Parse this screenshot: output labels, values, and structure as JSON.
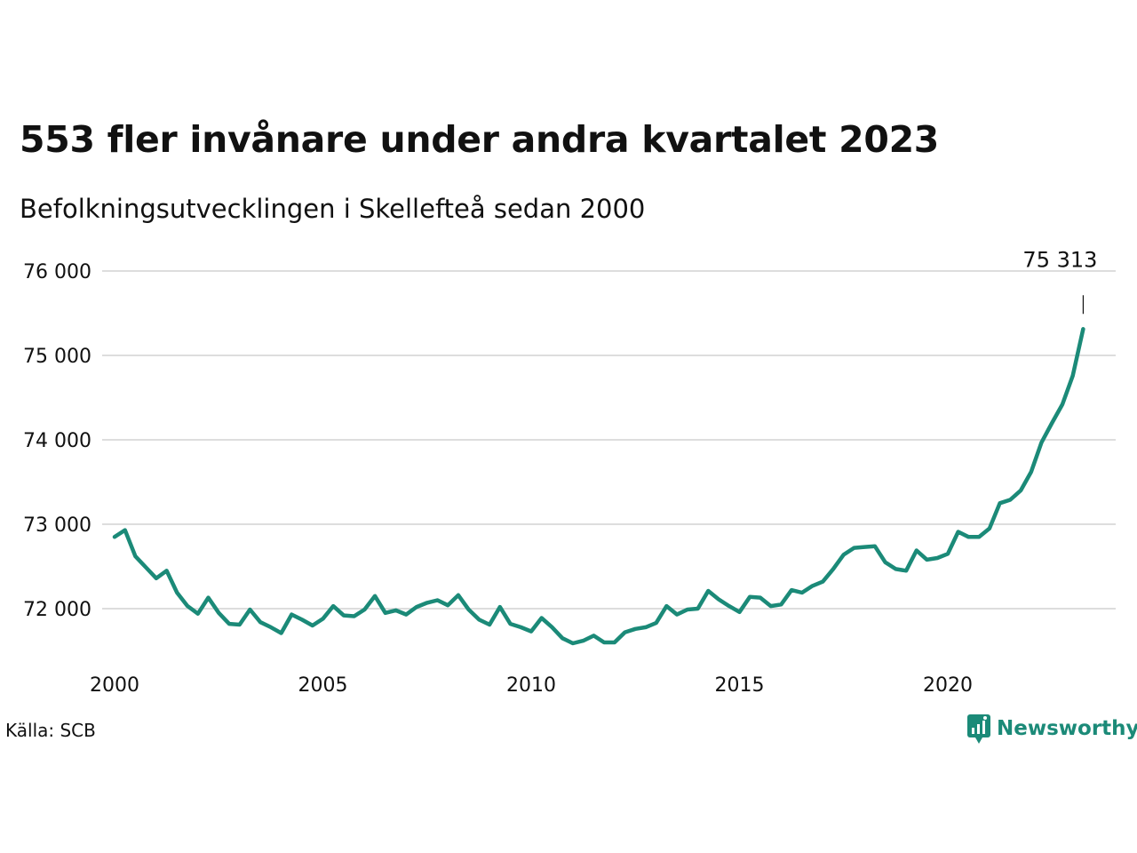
{
  "title": "553 fler invånare under andra kvartalet 2023",
  "subtitle": "Befolkningsutvecklingen i Skellefteå sedan 2000",
  "source": "Källa: SCB",
  "brand": "Newsworthy",
  "colors": {
    "line": "#1b8a78",
    "grid": "#dddddd",
    "brand": "#1b8a78"
  },
  "chart_data": {
    "type": "line",
    "x_unit": "quarter",
    "x_start": "2000 Q1",
    "x_end": "2023 Q2",
    "ylim": [
      71400,
      76000
    ],
    "yticks": [
      72000,
      73000,
      74000,
      75000,
      76000
    ],
    "ytick_labels": [
      "72 000",
      "73 000",
      "74 000",
      "75 000",
      "76 000"
    ],
    "xticks": [
      2000,
      2005,
      2010,
      2015,
      2020
    ],
    "xtick_labels": [
      "2000",
      "2005",
      "2010",
      "2015",
      "2020"
    ],
    "grid": true,
    "annotation": {
      "label": "75 313",
      "at": "2023 Q2",
      "value": 75313
    },
    "values": [
      72850,
      72930,
      72620,
      72490,
      72360,
      72450,
      72190,
      72030,
      71940,
      72130,
      71950,
      71820,
      71810,
      71990,
      71840,
      71780,
      71710,
      71930,
      71870,
      71800,
      71880,
      72030,
      71920,
      71910,
      71990,
      72150,
      71950,
      71980,
      71930,
      72020,
      72070,
      72100,
      72040,
      72160,
      71990,
      71870,
      71810,
      72020,
      71820,
      71780,
      71730,
      71890,
      71780,
      71650,
      71590,
      71620,
      71680,
      71600,
      71600,
      71720,
      71760,
      71780,
      71830,
      72030,
      71930,
      71990,
      72000,
      72210,
      72110,
      72030,
      71960,
      72140,
      72130,
      72030,
      72050,
      72220,
      72190,
      72270,
      72320,
      72470,
      72640,
      72720,
      72730,
      72740,
      72550,
      72470,
      72450,
      72690,
      72580,
      72600,
      72650,
      72910,
      72850,
      72850,
      72950,
      73250,
      73290,
      73400,
      73620,
      73970,
      74200,
      74420,
      74760,
      75313
    ]
  }
}
